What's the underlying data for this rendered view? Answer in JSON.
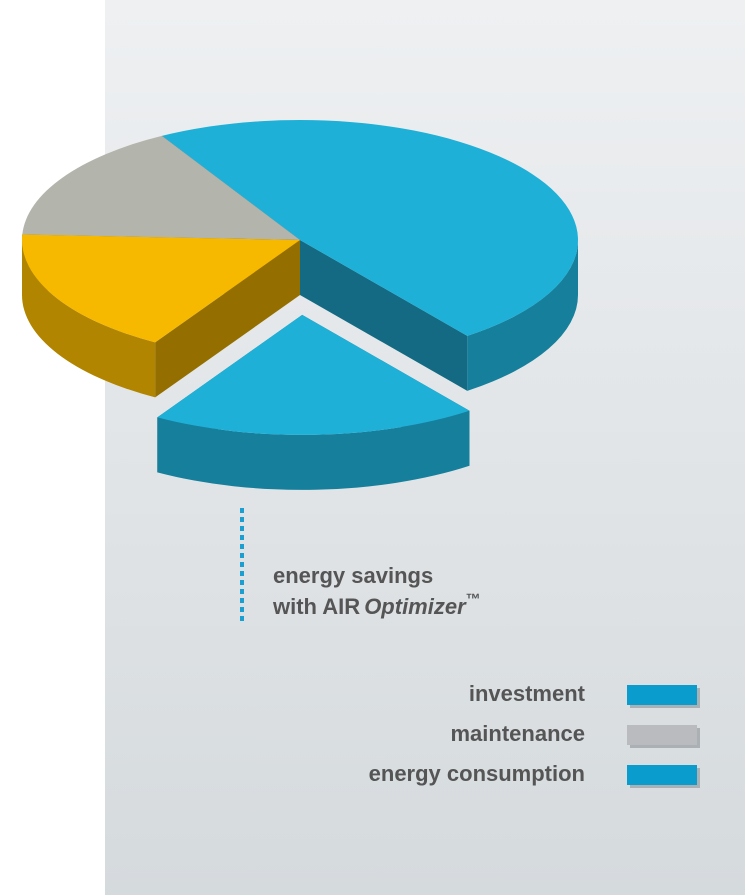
{
  "chart_data": {
    "type": "pie3d",
    "categories": [
      "investment",
      "maintenance",
      "energy consumption"
    ],
    "values": [
      17,
      16,
      48
    ],
    "slice_colors": [
      "#f7b900",
      "#b3b4ac",
      "#1fb0d8"
    ],
    "legend_colors": [
      "#0a9ccc",
      "#b9bbbe",
      "#0a9ccc"
    ],
    "annotation": {
      "line1": "energy savings",
      "line2": "with AIR",
      "line2_italic": "Optimizer",
      "trademark": "™",
      "value": 19,
      "color": "#1fb0d8"
    }
  }
}
